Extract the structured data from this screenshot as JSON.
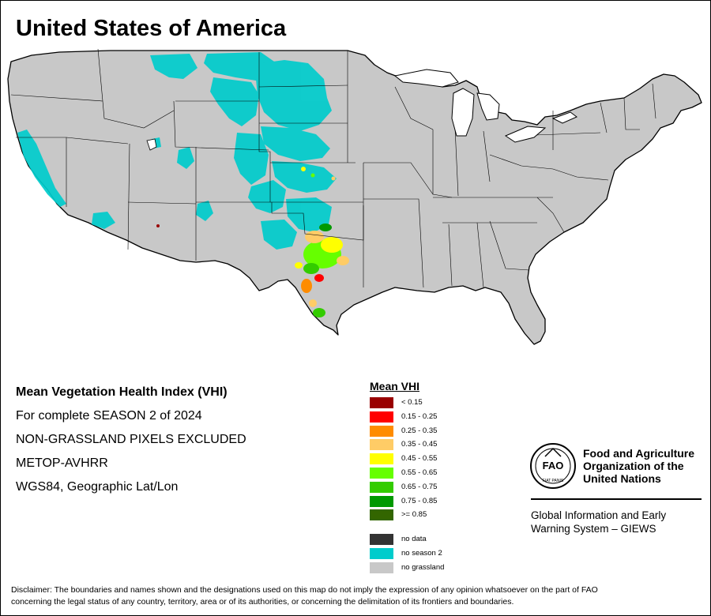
{
  "map": {
    "title": "United States of America",
    "colors": {
      "land": "#c8c8c8",
      "border": "#000000",
      "no_season": "#00cccc",
      "background": "#ffffff"
    }
  },
  "info": {
    "lines": [
      "Mean Vegetation Health Index (VHI)",
      "For complete SEASON 2 of 2024",
      "NON-GRASSLAND PIXELS EXCLUDED",
      "METOP-AVHRR",
      "WGS84, Geographic Lat/Lon"
    ]
  },
  "legend": {
    "title": "Mean VHI",
    "items": [
      {
        "label": "< 0.15",
        "color": "#990000"
      },
      {
        "label": "0.15 - 0.25",
        "color": "#ff0000"
      },
      {
        "label": "0.25 - 0.35",
        "color": "#ff8c00"
      },
      {
        "label": "0.35 - 0.45",
        "color": "#ffcc66"
      },
      {
        "label": "0.45 - 0.55",
        "color": "#ffff00"
      },
      {
        "label": "0.55 - 0.65",
        "color": "#66ff00"
      },
      {
        "label": "0.65 - 0.75",
        "color": "#33cc00"
      },
      {
        "label": "0.75 - 0.85",
        "color": "#009900"
      },
      {
        "label": ">= 0.85",
        "color": "#336600"
      }
    ],
    "extra_items": [
      {
        "label": "no data",
        "color": "#333333"
      },
      {
        "label": "no season 2",
        "color": "#00cccc"
      },
      {
        "label": "no grassland",
        "color": "#c8c8c8"
      }
    ]
  },
  "fao": {
    "name_line1": "Food and Agriculture",
    "name_line2": "Organization of the",
    "name_line3": "United Nations",
    "logo_letters": "FAO",
    "logo_motto": "FIAT PANIS",
    "subtitle_line1": "Global Information and Early",
    "subtitle_line2": "Warning System – GIEWS"
  },
  "disclaimer": {
    "line1": "Disclaimer: The boundaries and names shown and the designations used on this map do not imply the expression of any opinion whatsoever on the part of FAO",
    "line2": "concerning the legal status of any country, territory, area or of its authorities, or concerning the delimitation of its frontiers and boundaries."
  }
}
